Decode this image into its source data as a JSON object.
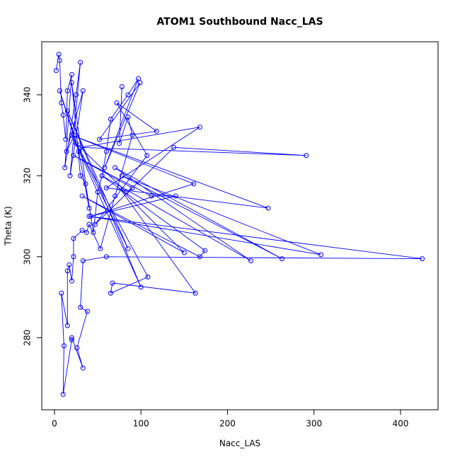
{
  "chart_data": {
    "type": "line",
    "title": "ATOM1 Southbound Nacc_LAS",
    "x_label": "Nacc_LAS",
    "y_label": "Theta (K)",
    "color": "#0000ff",
    "markers": true,
    "xlim": [
      -14.7,
      443.4
    ],
    "ylim": [
      262.2,
      353.1
    ],
    "xticks": [
      0,
      100,
      200,
      300,
      400
    ],
    "yticks": [
      280,
      300,
      320,
      340
    ],
    "x": [
      2,
      5,
      6,
      8,
      10,
      13,
      15,
      20,
      12,
      25,
      30,
      18,
      33,
      14,
      23,
      6,
      28,
      40,
      20,
      30,
      36,
      45,
      50,
      55,
      60,
      65,
      85,
      97,
      58,
      99,
      52,
      118,
      72,
      107,
      47,
      138,
      291,
      30,
      168,
      60,
      247,
      20,
      161,
      42,
      140,
      112,
      22,
      90,
      83,
      25,
      85,
      15,
      100,
      20,
      108,
      65,
      67,
      163,
      75,
      150,
      32,
      168,
      174,
      55,
      227,
      70,
      263,
      78,
      308,
      40,
      425,
      60,
      33,
      30,
      38,
      26,
      33,
      20,
      20,
      10,
      11,
      8,
      15,
      15,
      17,
      20,
      22,
      22,
      32,
      37,
      40,
      53,
      70,
      90,
      85,
      75,
      78
    ],
    "values": [
      346,
      350,
      348.5,
      338,
      335,
      329,
      341,
      345,
      322,
      340,
      348,
      320,
      341,
      326,
      330,
      341,
      326,
      312,
      343,
      320,
      318,
      306,
      316,
      320,
      326,
      334,
      340,
      344,
      322,
      343,
      329,
      331,
      338,
      325,
      308,
      327,
      325,
      327,
      332,
      317,
      312,
      330,
      318,
      310,
      315,
      315,
      325,
      317,
      316,
      328,
      302,
      336,
      292.5,
      330,
      295,
      291,
      293.5,
      291,
      317,
      301,
      315,
      300,
      301.5,
      320,
      299,
      322,
      299.5,
      320,
      300.5,
      310,
      299.5,
      300,
      299,
      287.5,
      286.5,
      277.5,
      272.5,
      280,
      279.5,
      266,
      278,
      291,
      283,
      296.5,
      298,
      294,
      300,
      304.5,
      306.5,
      306,
      308,
      302,
      315,
      330,
      334.5,
      328,
      342
    ]
  }
}
